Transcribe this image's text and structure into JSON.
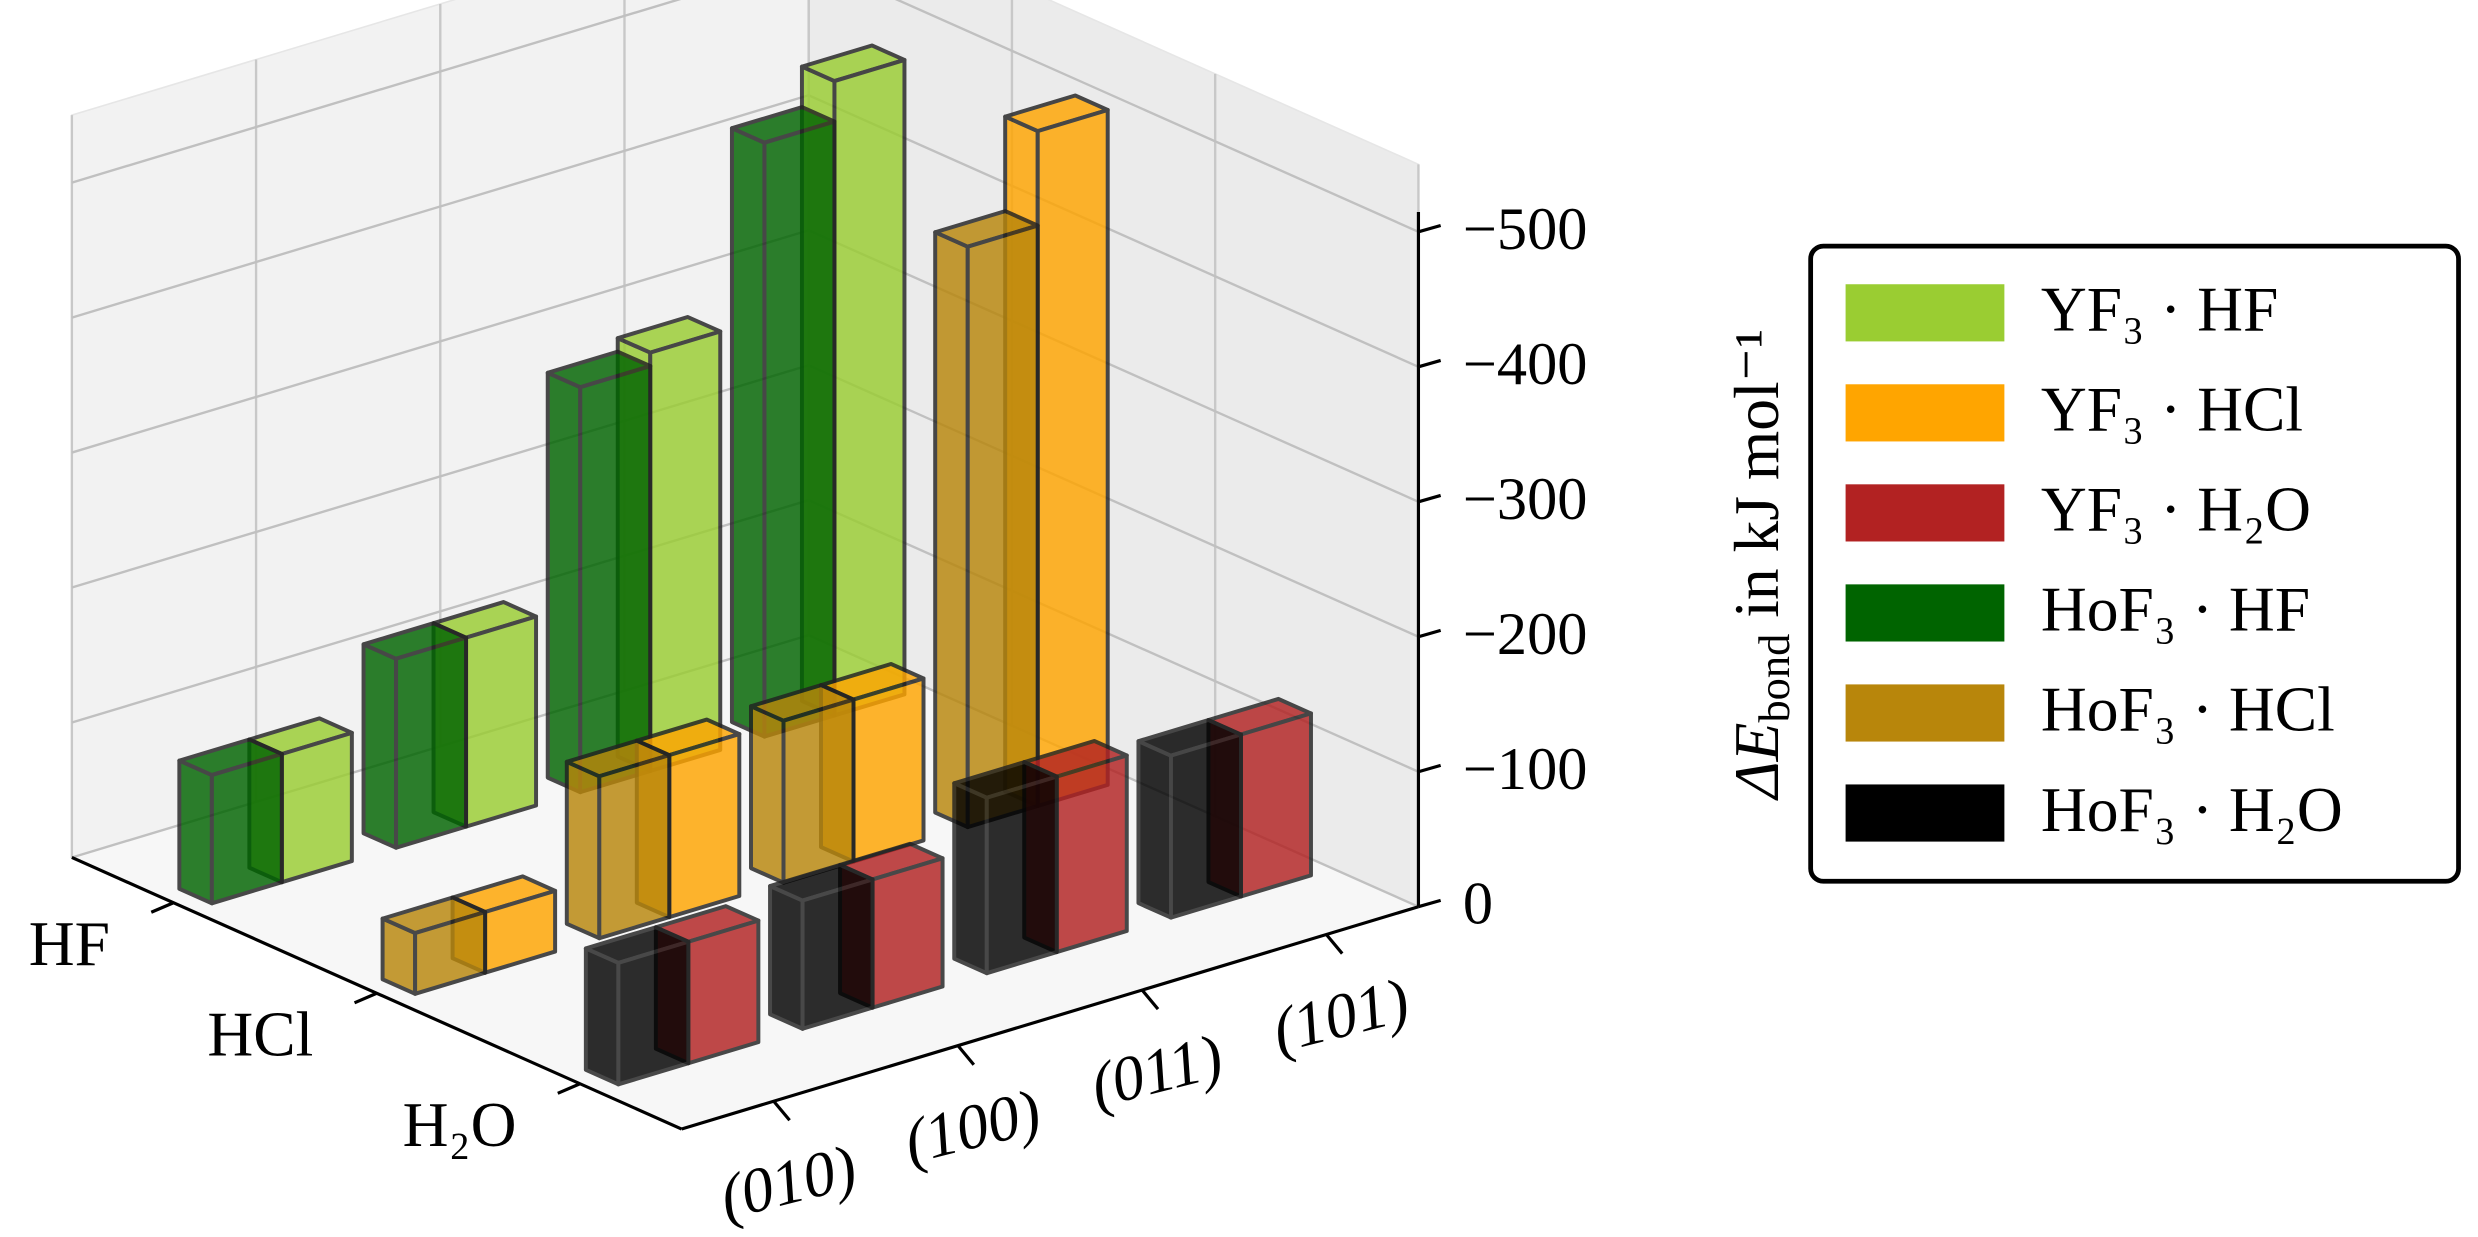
{
  "chart_data": {
    "type": "bar3d",
    "x_categories": [
      "(010)",
      "(100)",
      "(011)",
      "(101)"
    ],
    "y_categories": [
      "HF",
      "HCl",
      "H₂O"
    ],
    "zlabel": {
      "symbol": "ΔE",
      "subscript": "bond",
      "rest": " in kJ mol⁻¹"
    },
    "zlim": [
      0,
      -550
    ],
    "zticks": [
      {
        "value": -500,
        "label": "−500"
      },
      {
        "value": -400,
        "label": "−400"
      },
      {
        "value": -300,
        "label": "−300"
      },
      {
        "value": -200,
        "label": "−200"
      },
      {
        "value": -100,
        "label": "−100"
      },
      0
    ],
    "grid": true,
    "legend": "right",
    "series": [
      {
        "name": "YF₃ · HF",
        "color": "#9acd32",
        "values": [
          -95,
          -140,
          -310,
          -470
        ]
      },
      {
        "name": "YF₃ · HCl",
        "color": "#ffa500",
        "values": [
          -45,
          -120,
          -120,
          -500
        ]
      },
      {
        "name": "YF₃ · H₂O",
        "color": "#b22222",
        "values": [
          -90,
          -95,
          -130,
          -120
        ]
      },
      {
        "name": "HoF₃ · HF",
        "color": "#006400",
        "values": [
          -95,
          -140,
          -300,
          -440
        ]
      },
      {
        "name": "HoF₃ · HCl",
        "color": "#b8860b",
        "values": [
          -45,
          -120,
          -120,
          -430
        ]
      },
      {
        "name": "HoF₃ · H₂O",
        "color": "#000000",
        "values": [
          -90,
          -95,
          -130,
          -120
        ]
      }
    ]
  }
}
